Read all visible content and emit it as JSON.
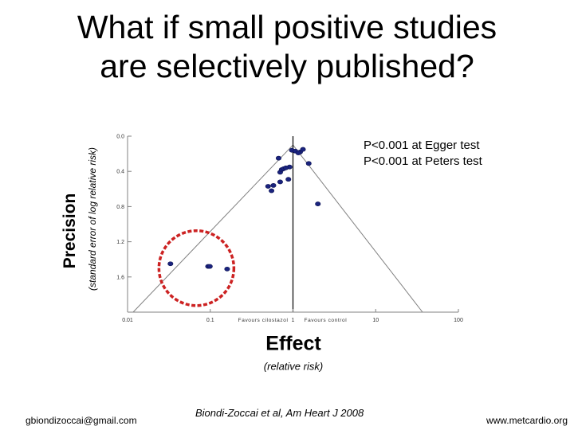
{
  "title_line1": "What if small positive studies",
  "title_line2": "are selectively published?",
  "y_axis_label": "Precision",
  "y_axis_sublabel": "(standard error of log relative risk)",
  "x_axis_label": "Effect",
  "x_axis_sublabel": "(relative risk)",
  "stats": {
    "egger": "P<0.001 at Egger test",
    "peters": "P<0.001 at Peters test"
  },
  "footer": {
    "email": "gbiondizoccai@gmail.com",
    "citation": "Biondi-Zoccai et al, Am Heart J 2008",
    "website": "www.metcardio.org"
  },
  "colors": {
    "points": "#1a237e",
    "highlight_circle": "#cc2222",
    "funnel_lines": "#808080"
  },
  "chart_data": {
    "type": "scatter",
    "subtype": "funnel plot",
    "x_scale": "log",
    "xlim": [
      0.01,
      100
    ],
    "ylim": [
      0.0,
      2.0
    ],
    "y_reversed": true,
    "x_ticks": [
      {
        "value": 0.01,
        "label": "0.01"
      },
      {
        "value": 0.1,
        "label": "0.1"
      },
      {
        "value": 1,
        "label": "1"
      },
      {
        "value": 10,
        "label": "10"
      },
      {
        "value": 100,
        "label": "100"
      }
    ],
    "x_annotations": [
      "Favours cilostazol",
      "Favours control"
    ],
    "y_ticks": [
      {
        "value": 0.0,
        "label": "0.0"
      },
      {
        "value": 0.4,
        "label": "0.4"
      },
      {
        "value": 0.8,
        "label": "0.8"
      },
      {
        "value": 1.2,
        "label": "1.2"
      },
      {
        "value": 1.6,
        "label": "1.6"
      }
    ],
    "pooled_effect": 1.0,
    "points": [
      {
        "x": 0.97,
        "y": 0.16
      },
      {
        "x": 1.07,
        "y": 0.17
      },
      {
        "x": 1.22,
        "y": 0.18
      },
      {
        "x": 1.16,
        "y": 0.19
      },
      {
        "x": 1.32,
        "y": 0.15
      },
      {
        "x": 0.67,
        "y": 0.25
      },
      {
        "x": 1.55,
        "y": 0.31
      },
      {
        "x": 0.91,
        "y": 0.35
      },
      {
        "x": 0.7,
        "y": 0.41
      },
      {
        "x": 0.73,
        "y": 0.38
      },
      {
        "x": 0.77,
        "y": 0.37
      },
      {
        "x": 0.82,
        "y": 0.36
      },
      {
        "x": 0.88,
        "y": 0.49
      },
      {
        "x": 0.7,
        "y": 0.52
      },
      {
        "x": 0.58,
        "y": 0.56
      },
      {
        "x": 0.5,
        "y": 0.57
      },
      {
        "x": 0.55,
        "y": 0.62
      },
      {
        "x": 2.0,
        "y": 0.77
      },
      {
        "x": 0.033,
        "y": 1.45
      },
      {
        "x": 0.094,
        "y": 1.48
      },
      {
        "x": 0.099,
        "y": 1.48
      },
      {
        "x": 0.16,
        "y": 1.51
      }
    ],
    "highlighted_region": {
      "x_center": 0.068,
      "y_center": 1.5,
      "note": "small positive studies"
    }
  }
}
